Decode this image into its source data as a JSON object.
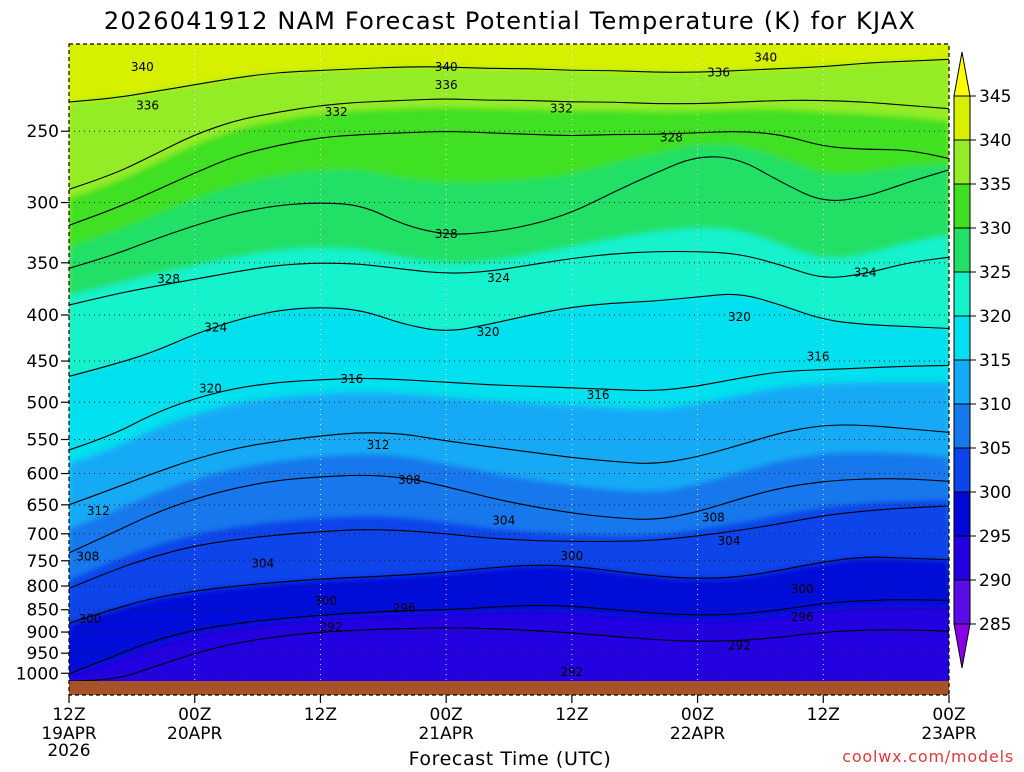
{
  "chart_data": {
    "type": "heatmap",
    "title": "2026041912 NAM Forecast Potential Temperature (K) for KJAX",
    "xlabel": "Forecast Time (UTC)",
    "ylabel": "",
    "credit": "coolwx.com/models",
    "x_ticks": [
      {
        "h": 0,
        "top": "12Z",
        "mid": "19APR",
        "bottom": "2026"
      },
      {
        "h": 12,
        "top": "00Z",
        "mid": "20APR",
        "bottom": ""
      },
      {
        "h": 24,
        "top": "12Z",
        "mid": "",
        "bottom": ""
      },
      {
        "h": 36,
        "top": "00Z",
        "mid": "21APR",
        "bottom": ""
      },
      {
        "h": 48,
        "top": "12Z",
        "mid": "",
        "bottom": ""
      },
      {
        "h": 60,
        "top": "00Z",
        "mid": "22APR",
        "bottom": ""
      },
      {
        "h": 72,
        "top": "12Z",
        "mid": "",
        "bottom": ""
      },
      {
        "h": 84,
        "top": "00Z",
        "mid": "23APR",
        "bottom": ""
      }
    ],
    "xlim_hours": [
      0,
      84
    ],
    "y_ticks": [
      250,
      300,
      350,
      400,
      450,
      500,
      550,
      600,
      650,
      700,
      750,
      800,
      850,
      900,
      950,
      1000
    ],
    "ylim_hPa": [
      200,
      1020
    ],
    "y_scale": "log-pressure",
    "grid": true,
    "colorbar": {
      "levels": [
        285,
        290,
        295,
        300,
        305,
        310,
        315,
        320,
        325,
        330,
        335,
        340,
        345
      ],
      "colors": [
        "#8a00e6",
        "#5b0ce8",
        "#2300e0",
        "#0008d8",
        "#0c45ea",
        "#1578ec",
        "#14aaf6",
        "#00e0ee",
        "#14f2cc",
        "#22e066",
        "#3fe022",
        "#93ec26",
        "#d6f000",
        "#ffff00"
      ],
      "ground_color": "#a8522a"
    },
    "series": [
      {
        "level": 340,
        "p": [
          232,
          230,
          226,
          222,
          218,
          215,
          214,
          213,
          212,
          212,
          213,
          213,
          214,
          214,
          215,
          215,
          214,
          213,
          212,
          210,
          209,
          208
        ]
      },
      {
        "level": 336,
        "p": [
          290,
          280,
          266,
          252,
          243,
          238,
          234,
          232,
          231,
          230,
          231,
          231,
          232,
          232,
          233,
          233,
          232,
          231,
          231,
          232,
          234,
          236
        ]
      },
      {
        "level": 332,
        "p": [
          318,
          306,
          292,
          278,
          266,
          259,
          254,
          252,
          251,
          250,
          251,
          252,
          253,
          252,
          252,
          251,
          250,
          252,
          260,
          262,
          262,
          268
        ]
      },
      {
        "level": 328,
        "p": [
          355,
          344,
          330,
          318,
          308,
          302,
          300,
          302,
          318,
          326,
          324,
          318,
          308,
          292,
          278,
          266,
          268,
          285,
          300,
          296,
          285,
          276
        ]
      },
      {
        "level": 324,
        "p": [
          390,
          380,
          372,
          365,
          358,
          352,
          350,
          351,
          356,
          360,
          358,
          352,
          346,
          342,
          340,
          340,
          342,
          352,
          365,
          360,
          350,
          345
        ]
      },
      {
        "level": 320,
        "p": [
          468,
          455,
          440,
          420,
          405,
          395,
          392,
          395,
          410,
          418,
          410,
          400,
          392,
          388,
          386,
          382,
          378,
          390,
          405,
          410,
          412,
          414
        ]
      },
      {
        "level": 316,
        "p": [
          565,
          545,
          515,
          495,
          482,
          475,
          472,
          470,
          472,
          475,
          478,
          480,
          482,
          484,
          486,
          480,
          470,
          462,
          460,
          458,
          456,
          455
        ]
      },
      {
        "level": 312,
        "p": [
          650,
          625,
          600,
          578,
          562,
          552,
          545,
          540,
          542,
          552,
          560,
          568,
          576,
          582,
          586,
          575,
          558,
          540,
          530,
          530,
          535,
          540
        ]
      },
      {
        "level": 308,
        "p": [
          735,
          700,
          665,
          640,
          622,
          610,
          605,
          602,
          606,
          620,
          638,
          652,
          664,
          672,
          676,
          662,
          640,
          622,
          612,
          608,
          608,
          612
        ]
      },
      {
        "level": 304,
        "p": [
          805,
          770,
          742,
          722,
          710,
          702,
          696,
          692,
          694,
          700,
          708,
          712,
          714,
          714,
          712,
          704,
          694,
          682,
          668,
          660,
          655,
          652
        ]
      },
      {
        "level": 300,
        "p": [
          880,
          850,
          825,
          810,
          800,
          792,
          786,
          782,
          778,
          772,
          764,
          758,
          760,
          770,
          780,
          785,
          782,
          768,
          752,
          742,
          745,
          748
        ]
      },
      {
        "level": 296,
        "p": [
          1002,
          960,
          920,
          895,
          880,
          870,
          862,
          856,
          852,
          850,
          845,
          840,
          842,
          850,
          858,
          862,
          860,
          850,
          836,
          830,
          828,
          830
        ]
      },
      {
        "level": 292,
        "p": [
          1020,
          1020,
          985,
          950,
          925,
          910,
          900,
          895,
          892,
          890,
          892,
          896,
          902,
          910,
          918,
          922,
          920,
          912,
          900,
          895,
          895,
          898
        ]
      }
    ],
    "inline_labels": [
      {
        "text": "340",
        "h": 7.0,
        "p": 212
      },
      {
        "text": "340",
        "h": 36.0,
        "p": 212
      },
      {
        "text": "336",
        "h": 36.0,
        "p": 222
      },
      {
        "text": "340",
        "h": 66.5,
        "p": 207
      },
      {
        "text": "336",
        "h": 62.0,
        "p": 215
      },
      {
        "text": "336",
        "h": 7.5,
        "p": 234
      },
      {
        "text": "332",
        "h": 25.5,
        "p": 238
      },
      {
        "text": "332",
        "h": 47.0,
        "p": 236
      },
      {
        "text": "328",
        "h": 57.5,
        "p": 254
      },
      {
        "text": "328",
        "h": 36.0,
        "p": 325
      },
      {
        "text": "324",
        "h": 41.0,
        "p": 364
      },
      {
        "text": "328",
        "h": 9.5,
        "p": 365
      },
      {
        "text": "324",
        "h": 76.0,
        "p": 359
      },
      {
        "text": "324",
        "h": 14.0,
        "p": 413
      },
      {
        "text": "320",
        "h": 40.0,
        "p": 418
      },
      {
        "text": "320",
        "h": 64.0,
        "p": 402
      },
      {
        "text": "320",
        "h": 13.5,
        "p": 483
      },
      {
        "text": "316",
        "h": 27.0,
        "p": 471
      },
      {
        "text": "316",
        "h": 50.5,
        "p": 491
      },
      {
        "text": "316",
        "h": 71.5,
        "p": 445
      },
      {
        "text": "312",
        "h": 29.5,
        "p": 558
      },
      {
        "text": "308",
        "h": 32.5,
        "p": 610
      },
      {
        "text": "312",
        "h": 2.8,
        "p": 660
      },
      {
        "text": "304",
        "h": 41.5,
        "p": 677
      },
      {
        "text": "308",
        "h": 61.5,
        "p": 671
      },
      {
        "text": "304",
        "h": 63.0,
        "p": 713
      },
      {
        "text": "308",
        "h": 1.8,
        "p": 742
      },
      {
        "text": "304",
        "h": 18.5,
        "p": 755
      },
      {
        "text": "300",
        "h": 48.0,
        "p": 741
      },
      {
        "text": "300",
        "h": 70.0,
        "p": 806
      },
      {
        "text": "300",
        "h": 24.5,
        "p": 831
      },
      {
        "text": "296",
        "h": 32.0,
        "p": 846
      },
      {
        "text": "296",
        "h": 70.0,
        "p": 866
      },
      {
        "text": "300",
        "h": 2.0,
        "p": 870
      },
      {
        "text": "292",
        "h": 25.0,
        "p": 888
      },
      {
        "text": "292",
        "h": 64.0,
        "p": 932
      },
      {
        "text": "292",
        "h": 48.0,
        "p": 997
      }
    ]
  }
}
